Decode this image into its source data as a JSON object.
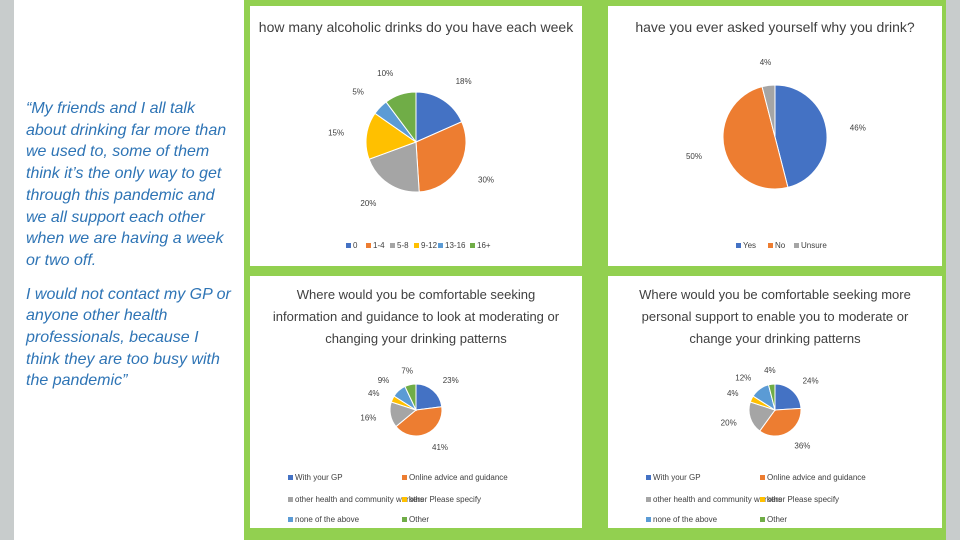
{
  "quote": {
    "paragraph1": "“My friends and I all talk about drinking far more than we used to, some of them think it’s the only way to get through this pandemic and we all support each other when we are having a week or two off.",
    "paragraph2": "I would not contact my GP or anyone other health professionals, because I think they are too busy with the pandemic”"
  },
  "colors": {
    "frame": "#92d050",
    "side_bars": "#c8cccc",
    "quote_text": "#2e74b5"
  },
  "chart_data": [
    {
      "type": "pie",
      "title": "how many alcoholic drinks do you have each week",
      "categories": [
        "0",
        "1-4",
        "5-8",
        "9-12",
        "13-16",
        "16+"
      ],
      "values": [
        18,
        30,
        20,
        15,
        5,
        10
      ],
      "labels": [
        "18%",
        "30%",
        "20%",
        "15%",
        "5%",
        "10%"
      ],
      "colors": [
        "#4472c4",
        "#ed7d31",
        "#a5a5a5",
        "#ffc000",
        "#5b9bd5",
        "#70ad47"
      ],
      "legend": "bottom"
    },
    {
      "type": "pie",
      "title": "have you ever asked yourself why you drink?",
      "categories": [
        "Yes",
        "No",
        "Unsure"
      ],
      "values": [
        46,
        50,
        4
      ],
      "labels": [
        "46%",
        "50%",
        "4%"
      ],
      "colors": [
        "#4472c4",
        "#ed7d31",
        "#a5a5a5"
      ],
      "legend": "bottom"
    },
    {
      "type": "pie",
      "title": "Where would you be comfortable seeking information and guidance to look at moderating or changing your drinking patterns",
      "title_lines": [
        "Where would you be comfortable seeking",
        "information and guidance to look at moderating or",
        "changing your drinking patterns"
      ],
      "categories": [
        "With your GP",
        "Online advice and guidance",
        "other health and community workers",
        "other Please specify",
        "none of the above",
        "Other"
      ],
      "values": [
        23,
        41,
        16,
        4,
        9,
        7
      ],
      "labels": [
        "23%",
        "41%",
        "16%",
        "4%",
        "9%",
        "7%"
      ],
      "colors": [
        "#4472c4",
        "#ed7d31",
        "#a5a5a5",
        "#ffc000",
        "#5b9bd5",
        "#70ad47"
      ],
      "legend": "bottom"
    },
    {
      "type": "pie",
      "title": "Where would you be comfortable seeking more personal support to enable you to moderate or change your drinking patterns",
      "title_lines": [
        "Where would you be comfortable seeking more",
        "personal support to enable you to moderate or",
        "change your drinking patterns"
      ],
      "categories": [
        "With your GP",
        "Online advice and guidance",
        "other health and community workers",
        "other Please specify",
        "none of the above",
        "Other"
      ],
      "values": [
        24,
        36,
        20,
        4,
        12,
        4
      ],
      "labels": [
        "24%",
        "36%",
        "20%",
        "4%",
        "12%",
        "4%"
      ],
      "colors": [
        "#4472c4",
        "#ed7d31",
        "#a5a5a5",
        "#ffc000",
        "#5b9bd5",
        "#70ad47"
      ],
      "legend": "bottom"
    }
  ]
}
